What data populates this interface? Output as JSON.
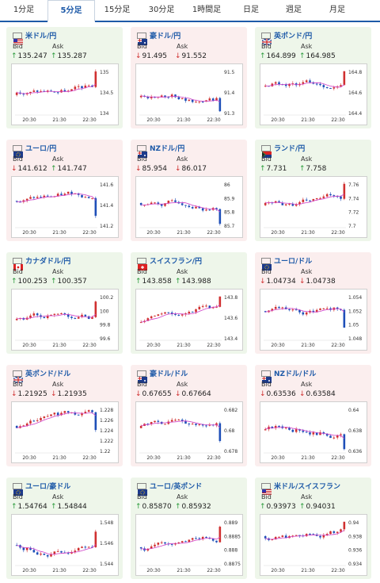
{
  "tabs": [
    {
      "label": "1分足",
      "active": false
    },
    {
      "label": "5分足",
      "active": true
    },
    {
      "label": "15分足",
      "active": false
    },
    {
      "label": "30分足",
      "active": false
    },
    {
      "label": "1時間足",
      "active": false
    },
    {
      "label": "日足",
      "active": false
    },
    {
      "label": "週足",
      "active": false
    },
    {
      "label": "月足",
      "active": false
    }
  ],
  "colors": {
    "up": "#d03030",
    "down": "#1e4fb8",
    "ma": "#d040c8",
    "accent": "#1e5aa8",
    "card_up": "#eef6ea",
    "card_down": "#fbeeee"
  },
  "bid_label": "Bid",
  "ask_label": "Ask",
  "cards": [
    {
      "pair": "米ドル/円",
      "flag": "us-flag-icon",
      "trend": "up",
      "bid": "135.247",
      "ask": "135.287",
      "bid_dir": "up",
      "ask_dir": "up",
      "yticks": [
        "135",
        "134.5",
        "134"
      ],
      "xticks": [
        "20:30",
        "21:30",
        "22:30"
      ]
    },
    {
      "pair": "豪ドル/円",
      "flag": "au-flag-icon",
      "trend": "down",
      "bid": "91.495",
      "ask": "91.552",
      "bid_dir": "down",
      "ask_dir": "down",
      "yticks": [
        "91.5",
        "91.4",
        "91.3"
      ],
      "xticks": [
        "20:30",
        "21:30",
        "22:30"
      ]
    },
    {
      "pair": "英ポンド/円",
      "flag": "gb-flag-icon",
      "trend": "up",
      "bid": "164.899",
      "ask": "164.985",
      "bid_dir": "up",
      "ask_dir": "up",
      "yticks": [
        "164.8",
        "164.6",
        "164.4"
      ],
      "xticks": [
        "20:30",
        "21:30",
        "22:30"
      ]
    },
    {
      "pair": "ユーロ/円",
      "flag": "eu-flag-icon",
      "trend": "down",
      "bid": "141.612",
      "ask": "141.747",
      "bid_dir": "down",
      "ask_dir": "up",
      "yticks": [
        "141.6",
        "141.4",
        "141.2"
      ],
      "xticks": [
        "20:30",
        "21:30",
        "22:30"
      ]
    },
    {
      "pair": "NZドル/円",
      "flag": "nz-flag-icon",
      "trend": "down",
      "bid": "85.954",
      "ask": "86.017",
      "bid_dir": "down",
      "ask_dir": "down",
      "yticks": [
        "86",
        "85.9",
        "85.8",
        "85.7"
      ],
      "xticks": [
        "20:30",
        "21:30",
        "22:30"
      ]
    },
    {
      "pair": "ランド/円",
      "flag": "za-flag-icon",
      "trend": "up",
      "bid": "7.731",
      "ask": "7.758",
      "bid_dir": "up",
      "ask_dir": "up",
      "yticks": [
        "7.76",
        "7.74",
        "7.72",
        "7.7"
      ],
      "xticks": [
        "20:30",
        "21:30",
        "22:30"
      ]
    },
    {
      "pair": "カナダドル/円",
      "flag": "ca-flag-icon",
      "trend": "up",
      "bid": "100.253",
      "ask": "100.357",
      "bid_dir": "up",
      "ask_dir": "up",
      "yticks": [
        "100.2",
        "100",
        "99.8",
        "99.6"
      ],
      "xticks": [
        "20:30",
        "21:30",
        "22:30"
      ]
    },
    {
      "pair": "スイスフラン/円",
      "flag": "ch-flag-icon",
      "trend": "up",
      "bid": "143.858",
      "ask": "143.988",
      "bid_dir": "up",
      "ask_dir": "up",
      "yticks": [
        "143.8",
        "143.6",
        "143.4"
      ],
      "xticks": [
        "20:30",
        "21:30",
        "22:30"
      ]
    },
    {
      "pair": "ユーロ/ドル",
      "flag": "eu-flag-icon",
      "trend": "down",
      "bid": "1.04734",
      "ask": "1.04738",
      "bid_dir": "down",
      "ask_dir": "down",
      "yticks": [
        "1.054",
        "1.052",
        "1.05",
        "1.048"
      ],
      "xticks": [
        "20:30",
        "21:30",
        "22:30"
      ]
    },
    {
      "pair": "英ポンド/ドル",
      "flag": "gb-flag-icon",
      "trend": "down",
      "bid": "1.21925",
      "ask": "1.21935",
      "bid_dir": "down",
      "ask_dir": "down",
      "yticks": [
        "1.228",
        "1.226",
        "1.224",
        "1.222",
        "1.22"
      ],
      "xticks": [
        "20:30",
        "21:30",
        "22:30"
      ]
    },
    {
      "pair": "豪ドル/ドル",
      "flag": "au-flag-icon",
      "trend": "down",
      "bid": "0.67655",
      "ask": "0.67664",
      "bid_dir": "down",
      "ask_dir": "down",
      "yticks": [
        "0.682",
        "0.68",
        "0.678"
      ],
      "xticks": [
        "20:30",
        "21:30",
        "22:30"
      ]
    },
    {
      "pair": "NZドル/ドル",
      "flag": "nz-flag-icon",
      "trend": "down",
      "bid": "0.63536",
      "ask": "0.63584",
      "bid_dir": "down",
      "ask_dir": "down",
      "yticks": [
        "0.64",
        "0.638",
        "0.636"
      ],
      "xticks": [
        "20:30",
        "21:30",
        "22:30"
      ]
    },
    {
      "pair": "ユーロ/豪ドル",
      "flag": "eu-flag-icon",
      "trend": "up",
      "bid": "1.54764",
      "ask": "1.54844",
      "bid_dir": "up",
      "ask_dir": "up",
      "yticks": [
        "1.548",
        "1.546",
        "1.544"
      ],
      "xticks": [
        "20:30",
        "21:30",
        "22:30"
      ]
    },
    {
      "pair": "ユーロ/英ポンド",
      "flag": "eu-flag-icon",
      "trend": "up",
      "bid": "0.85870",
      "ask": "0.85932",
      "bid_dir": "up",
      "ask_dir": "up",
      "yticks": [
        "0.889",
        "0.8885",
        "0.888",
        "0.8875"
      ],
      "xticks": [
        "20:30",
        "21:30",
        "22:30"
      ]
    },
    {
      "pair": "米ドル/スイスフラン",
      "flag": "us-flag-icon",
      "trend": "up",
      "bid": "0.93973",
      "ask": "0.94031",
      "bid_dir": "up",
      "ask_dir": "up",
      "yticks": [
        "0.94",
        "0.938",
        "0.936",
        "0.934"
      ],
      "xticks": [
        "20:30",
        "21:30",
        "22:30"
      ]
    }
  ]
}
